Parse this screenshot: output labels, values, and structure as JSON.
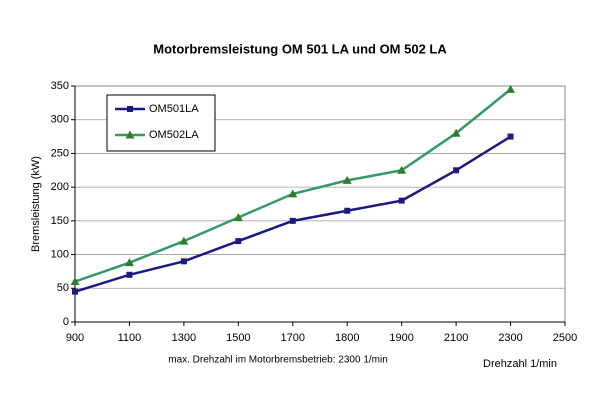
{
  "chart_data": {
    "type": "line",
    "title": "Motorbremsleistung OM 501 LA und OM 502 LA",
    "y_label": "Bremsleistung (kW)",
    "x_label": "Drehzahl 1/min",
    "note": "max. Drehzahl im Motorbremsbetrieb: 2300 1/min",
    "categories": [
      "900",
      "1100",
      "1300",
      "1500",
      "1700",
      "1800",
      "1900",
      "2100",
      "2300",
      "2500"
    ],
    "series": [
      {
        "name": "OM501LA",
        "color": "#1a1a80",
        "marker": "square",
        "values": [
          45,
          70,
          90,
          120,
          150,
          165,
          180,
          225,
          275,
          null
        ]
      },
      {
        "name": "OM502LA",
        "color": "#339966",
        "marker": "triangle",
        "values": [
          60,
          88,
          120,
          155,
          190,
          210,
          225,
          280,
          345,
          null
        ]
      }
    ],
    "ylim": [
      0,
      350
    ],
    "yticks": [
      0,
      50,
      100,
      150,
      200,
      250,
      300,
      350
    ],
    "grid": true,
    "legend": "upper left"
  }
}
